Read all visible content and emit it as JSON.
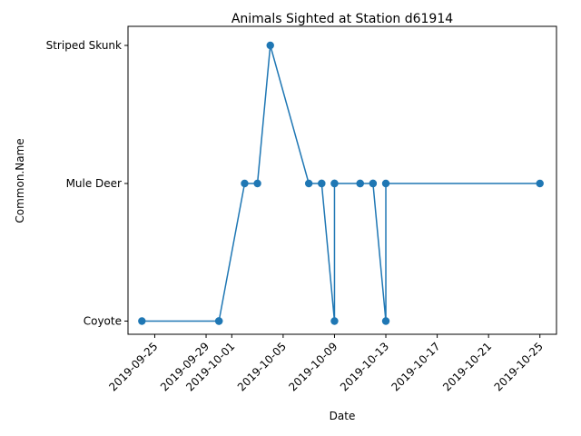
{
  "chart_data": {
    "type": "line",
    "title": "Animals Sighted at Station d61914",
    "xlabel": "Date",
    "ylabel": "Common.Name",
    "categories": [
      "Coyote",
      "Mule Deer",
      "Striped Skunk"
    ],
    "x_ticks": [
      "2019-09-25",
      "2019-09-29",
      "2019-10-01",
      "2019-10-05",
      "2019-10-09",
      "2019-10-13",
      "2019-10-17",
      "2019-10-21",
      "2019-10-25"
    ],
    "xlim": [
      "2019-09-22T22:00",
      "2019-10-26T07:00"
    ],
    "grid": false,
    "series": [
      {
        "color": "#1f77b4",
        "marker": "circle",
        "points": [
          {
            "x": "2019-09-24",
            "y": "Coyote"
          },
          {
            "x": "2019-09-30",
            "y": "Coyote"
          },
          {
            "x": "2019-09-30",
            "y": "Coyote"
          },
          {
            "x": "2019-10-02",
            "y": "Mule Deer"
          },
          {
            "x": "2019-10-03",
            "y": "Mule Deer"
          },
          {
            "x": "2019-10-04",
            "y": "Striped Skunk"
          },
          {
            "x": "2019-10-07",
            "y": "Mule Deer"
          },
          {
            "x": "2019-10-08",
            "y": "Mule Deer"
          },
          {
            "x": "2019-10-08",
            "y": "Mule Deer"
          },
          {
            "x": "2019-10-09",
            "y": "Coyote"
          },
          {
            "x": "2019-10-09",
            "y": "Mule Deer"
          },
          {
            "x": "2019-10-09",
            "y": "Mule Deer"
          },
          {
            "x": "2019-10-11",
            "y": "Mule Deer"
          },
          {
            "x": "2019-10-11",
            "y": "Mule Deer"
          },
          {
            "x": "2019-10-12",
            "y": "Mule Deer"
          },
          {
            "x": "2019-10-12",
            "y": "Mule Deer"
          },
          {
            "x": "2019-10-13",
            "y": "Coyote"
          },
          {
            "x": "2019-10-13",
            "y": "Mule Deer"
          },
          {
            "x": "2019-10-25",
            "y": "Mule Deer"
          }
        ]
      }
    ]
  }
}
